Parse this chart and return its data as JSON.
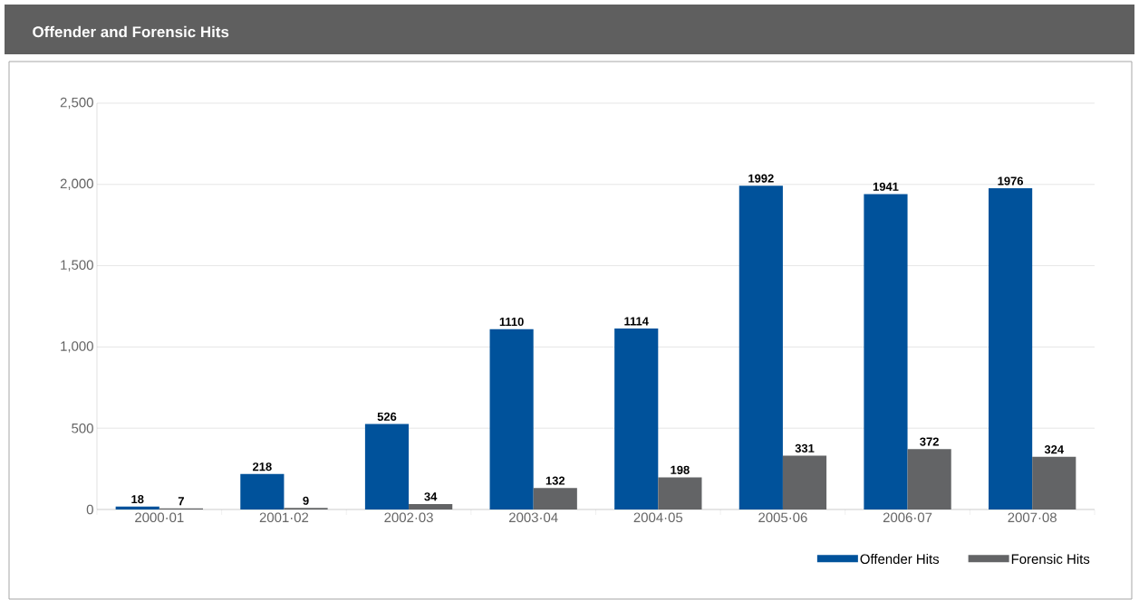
{
  "chart_data": {
    "type": "bar",
    "title": "Offender and Forensic Hits",
    "categories": [
      "2000·01",
      "2001·02",
      "2002·03",
      "2003·04",
      "2004·05",
      "2005·06",
      "2006·07",
      "2007·08"
    ],
    "series": [
      {
        "name": "Offender Hits",
        "color": "#00529b",
        "values": [
          18,
          218,
          526,
          1110,
          1114,
          1992,
          1941,
          1976
        ]
      },
      {
        "name": "Forensic Hits",
        "color": "#636466",
        "values": [
          7,
          9,
          34,
          132,
          198,
          331,
          372,
          324
        ]
      }
    ],
    "ylim": [
      0,
      2500
    ],
    "yticks": [
      0,
      500,
      {
        "value": 1000,
        "label": "1,000"
      },
      {
        "value": 1500,
        "label": "1,500"
      },
      {
        "value": 2000,
        "label": "2,000"
      },
      {
        "value": 2500,
        "label": "2,500"
      }
    ],
    "grid": "y",
    "legend": "bottom right",
    "data_labels": true
  }
}
